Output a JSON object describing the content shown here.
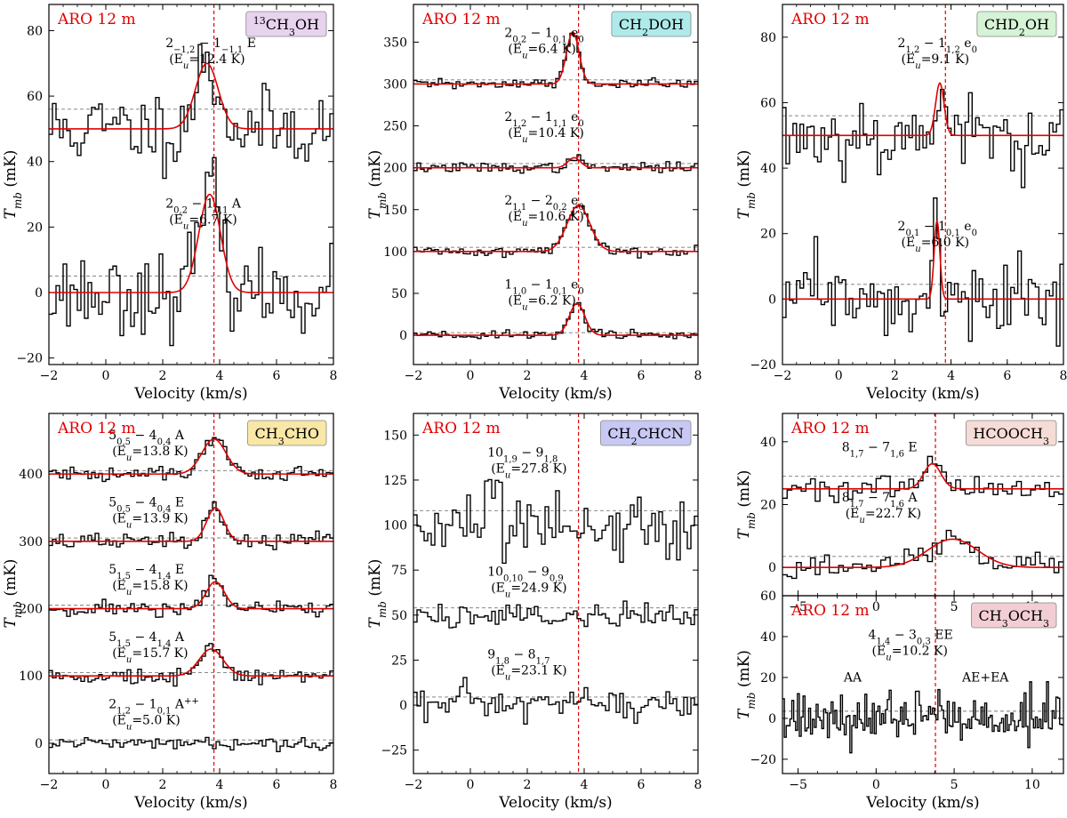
{
  "chart_data": [
    {
      "type": "line",
      "id": "p13ch3oh",
      "telescope": "ARO 12 m",
      "molecule": "<tspan baseline-shift=\"super\" font-size=\"11\">13</tspan>CH<tspan baseline-shift=\"sub\" font-size=\"11\">3</tspan>OH",
      "molecule_color": "#e8d3ee",
      "xlabel": "Velocity (km/s)",
      "ylabel": "T<tspan baseline-shift=\"sub\" font-size=\"12\">mb</tspan> (mK)",
      "xlim": [
        -2,
        8
      ],
      "ylim": [
        -22,
        88
      ],
      "xticks": [
        -2,
        0,
        2,
        4,
        6,
        8
      ],
      "yticks": [
        -20,
        0,
        20,
        40,
        60,
        80
      ],
      "vlsr": 3.8,
      "series": [
        {
          "name": "2-1,2 - 1-1,1 E",
          "label": "2<tspan baseline-shift=\"sub\" font-size=\"10\">−1,2</tspan> − 1<tspan baseline-shift=\"sub\" font-size=\"10\">−1,1</tspan> E",
          "eu": "(E<tspan baseline-shift=\"sub\" font-size=\"10\" font-style=\"italic\">u</tspan>=12.4 K)",
          "offset": 50,
          "rms_level": 56,
          "amp": 20,
          "center": 3.55,
          "width": 0.4,
          "noise": 6,
          "seed": 11,
          "label_v": 2.1,
          "label_y": 75
        },
        {
          "name": "20,2 - 10,1 A",
          "label": "2<tspan baseline-shift=\"sub\" font-size=\"10\">0,2</tspan> − 1<tspan baseline-shift=\"sub\" font-size=\"10\">0,1</tspan> A",
          "eu": "(E<tspan baseline-shift=\"sub\" font-size=\"10\" font-style=\"italic\">u</tspan>=6.7 K)",
          "offset": 0,
          "rms_level": 5,
          "amp": 30,
          "center": 3.65,
          "width": 0.38,
          "noise": 6,
          "seed": 23,
          "label_v": 2.1,
          "label_y": 26
        }
      ]
    },
    {
      "type": "line",
      "id": "pch2doh",
      "telescope": "ARO 12 m",
      "molecule": "CH<tspan baseline-shift=\"sub\" font-size=\"11\">2</tspan>DOH",
      "molecule_color": "#aeeaea",
      "xlabel": "Velocity (km/s)",
      "ylabel": "T<tspan baseline-shift=\"sub\" font-size=\"12\">mb</tspan> (mK)",
      "xlim": [
        -2,
        8
      ],
      "ylim": [
        -35,
        395
      ],
      "xticks": [
        -2,
        0,
        2,
        4,
        6,
        8
      ],
      "yticks": [
        0,
        50,
        100,
        150,
        200,
        250,
        300,
        350
      ],
      "vlsr": 3.8,
      "series": [
        {
          "name": "20,2 - 10,1 e0",
          "label": "2<tspan baseline-shift=\"sub\" font-size=\"10\">0,2</tspan> − 1<tspan baseline-shift=\"sub\" font-size=\"10\">0,1</tspan> e<tspan baseline-shift=\"sub\" font-size=\"10\">0</tspan>",
          "eu": "(E<tspan baseline-shift=\"sub\" font-size=\"10\" font-style=\"italic\">u</tspan>=6.4 K)",
          "offset": 300,
          "rms_level": 305,
          "amp": 62,
          "center": 3.6,
          "width": 0.22,
          "noise": 3,
          "seed": 31,
          "label_v": 1.2,
          "label_y": 356
        },
        {
          "name": "21,2 - 11,1 e0",
          "label": "2<tspan baseline-shift=\"sub\" font-size=\"10\">1,2</tspan> − 1<tspan baseline-shift=\"sub\" font-size=\"10\">1,1</tspan> e<tspan baseline-shift=\"sub\" font-size=\"10\">0</tspan>",
          "eu": "(E<tspan baseline-shift=\"sub\" font-size=\"10\" font-style=\"italic\">u</tspan>=10.4 K)",
          "offset": 200,
          "rms_level": 205,
          "amp": 12,
          "center": 3.65,
          "width": 0.22,
          "noise": 3,
          "seed": 37,
          "label_v": 1.2,
          "label_y": 256
        },
        {
          "name": "21,1 - 20,2 e0",
          "label": "2<tspan baseline-shift=\"sub\" font-size=\"10\">1,1</tspan> − 2<tspan baseline-shift=\"sub\" font-size=\"10\">0,2</tspan> e<tspan baseline-shift=\"sub\" font-size=\"10\">0</tspan>",
          "eu": "(E<tspan baseline-shift=\"sub\" font-size=\"10\" font-style=\"italic\">u</tspan>=10.6 K)",
          "offset": 100,
          "rms_level": 105,
          "amp": 55,
          "center": 3.8,
          "width": 0.4,
          "noise": 3,
          "seed": 41,
          "label_v": 1.2,
          "label_y": 156
        },
        {
          "name": "11,0 - 10,1 e0",
          "label": "1<tspan baseline-shift=\"sub\" font-size=\"10\">1,0</tspan> − 1<tspan baseline-shift=\"sub\" font-size=\"10\">0,1</tspan> e<tspan baseline-shift=\"sub\" font-size=\"10\">0</tspan>",
          "eu": "(E<tspan baseline-shift=\"sub\" font-size=\"10\" font-style=\"italic\">u</tspan>=6.2 K)",
          "offset": 0,
          "rms_level": 3,
          "amp": 38,
          "center": 3.75,
          "width": 0.27,
          "noise": 3,
          "seed": 43,
          "label_v": 1.2,
          "label_y": 56
        }
      ]
    },
    {
      "type": "line",
      "id": "pchd2oh",
      "telescope": "ARO 12 m",
      "molecule": "CHD<tspan baseline-shift=\"sub\" font-size=\"11\">2</tspan>OH",
      "molecule_color": "#d5f3d5",
      "xlabel": "Velocity (km/s)",
      "ylabel": "T<tspan baseline-shift=\"sub\" font-size=\"12\">mb</tspan> (mK)",
      "xlim": [
        -2,
        8
      ],
      "ylim": [
        -20,
        90
      ],
      "xticks": [
        -2,
        0,
        2,
        4,
        6,
        8
      ],
      "yticks": [
        -20,
        0,
        20,
        40,
        60,
        80
      ],
      "vlsr": 3.8,
      "series": [
        {
          "name": "21,2 - 11,2 e0",
          "label": "2<tspan baseline-shift=\"sub\" font-size=\"10\">1,2</tspan> − 1<tspan baseline-shift=\"sub\" font-size=\"10\">1,2</tspan> e<tspan baseline-shift=\"sub\" font-size=\"10\">0</tspan>",
          "eu": "(E<tspan baseline-shift=\"sub\" font-size=\"10\" font-style=\"italic\">u</tspan>=9.1 K)",
          "offset": 50,
          "rms_level": 56,
          "amp": 16,
          "center": 3.6,
          "width": 0.15,
          "noise": 6,
          "seed": 53,
          "label_v": 2.1,
          "label_y": 77
        },
        {
          "name": "20,1 - 10,1 e0",
          "label": "2<tspan baseline-shift=\"sub\" font-size=\"10\">0,1</tspan> − 1<tspan baseline-shift=\"sub\" font-size=\"10\">0,1</tspan> e<tspan baseline-shift=\"sub\" font-size=\"10\">0</tspan>",
          "eu": "(E<tspan baseline-shift=\"sub\" font-size=\"10\" font-style=\"italic\">u</tspan>=6.0 K)",
          "offset": 0,
          "rms_level": 4.5,
          "amp": 24,
          "center": 3.5,
          "width": 0.1,
          "noise": 5,
          "seed": 59,
          "label_v": 2.1,
          "label_y": 21
        }
      ]
    },
    {
      "type": "line",
      "id": "pch3cho",
      "telescope": "ARO 12 m",
      "molecule": "CH<tspan baseline-shift=\"sub\" font-size=\"11\">3</tspan>CHO",
      "molecule_color": "#f8e7a6",
      "xlabel": "Velocity (km/s)",
      "ylabel": "T<tspan baseline-shift=\"sub\" font-size=\"12\">mb</tspan> (mK)",
      "xlim": [
        -2,
        8
      ],
      "ylim": [
        -45,
        490
      ],
      "xticks": [
        -2,
        0,
        2,
        4,
        6,
        8
      ],
      "yticks": [
        0,
        100,
        200,
        300,
        400
      ],
      "vlsr": 3.8,
      "series": [
        {
          "name": "50,5 - 40,4 A",
          "label": "5<tspan baseline-shift=\"sub\" font-size=\"10\">0,5</tspan> − 4<tspan baseline-shift=\"sub\" font-size=\"10\">0,4</tspan> A",
          "eu": "(E<tspan baseline-shift=\"sub\" font-size=\"10\" font-style=\"italic\">u</tspan>=13.8 K)",
          "offset": 400,
          "rms_level": 405,
          "amp": 52,
          "center": 3.8,
          "width": 0.42,
          "noise": 6,
          "seed": 61,
          "label_v": 0.1,
          "label_y": 452
        },
        {
          "name": "50,5 - 40,4 E",
          "label": "5<tspan baseline-shift=\"sub\" font-size=\"10\">0,5</tspan> − 4<tspan baseline-shift=\"sub\" font-size=\"10\">0,4</tspan> E",
          "eu": "(E<tspan baseline-shift=\"sub\" font-size=\"10\" font-style=\"italic\">u</tspan>=13.9 K)",
          "offset": 300,
          "rms_level": 305,
          "amp": 50,
          "center": 3.85,
          "width": 0.3,
          "noise": 6,
          "seed": 67,
          "label_v": 0.1,
          "label_y": 352
        },
        {
          "name": "51,5 - 41,4 E",
          "label": "5<tspan baseline-shift=\"sub\" font-size=\"10\">1,5</tspan> − 4<tspan baseline-shift=\"sub\" font-size=\"10\">1,4</tspan> E",
          "eu": "(E<tspan baseline-shift=\"sub\" font-size=\"10\" font-style=\"italic\">u</tspan>=15.8 K)",
          "offset": 200,
          "rms_level": 205,
          "amp": 40,
          "center": 3.85,
          "width": 0.32,
          "noise": 6,
          "seed": 71,
          "label_v": 0.1,
          "label_y": 252
        },
        {
          "name": "51,5 - 41,4 A",
          "label": "5<tspan baseline-shift=\"sub\" font-size=\"10\">1,5</tspan> − 4<tspan baseline-shift=\"sub\" font-size=\"10\">1,4</tspan> A",
          "eu": "(E<tspan baseline-shift=\"sub\" font-size=\"10\" font-style=\"italic\">u</tspan>=15.7 K)",
          "offset": 100,
          "rms_level": 105,
          "amp": 40,
          "center": 3.7,
          "width": 0.42,
          "noise": 6,
          "seed": 73,
          "label_v": 0.1,
          "label_y": 152
        },
        {
          "name": "21,2 - 10,1 A++",
          "label": "2<tspan baseline-shift=\"sub\" font-size=\"10\">1,2</tspan> − 1<tspan baseline-shift=\"sub\" font-size=\"10\">0,1</tspan> A<tspan baseline-shift=\"super\" font-size=\"10\">++</tspan>",
          "eu": "(E<tspan baseline-shift=\"sub\" font-size=\"10\" font-style=\"italic\">u</tspan>=5.0 K)",
          "offset": 0,
          "rms_level": 5,
          "amp": 0,
          "center": 3.8,
          "width": 0.3,
          "noise": 4,
          "seed": 79,
          "label_v": 0.1,
          "label_y": 52
        }
      ]
    },
    {
      "type": "line",
      "id": "pch2chcn",
      "telescope": "ARO 12 m",
      "molecule": "CH<tspan baseline-shift=\"sub\" font-size=\"11\">2</tspan>CHCN",
      "molecule_color": "#c8c8f4",
      "xlabel": "Velocity (km/s)",
      "ylabel": "T<tspan baseline-shift=\"sub\" font-size=\"12\">mb</tspan> (mK)",
      "xlim": [
        -2,
        8
      ],
      "ylim": [
        -38,
        162
      ],
      "xticks": [
        -2,
        0,
        2,
        4,
        6,
        8
      ],
      "yticks": [
        -25,
        0,
        25,
        50,
        75,
        100,
        125,
        150
      ],
      "vlsr": 3.8,
      "series": [
        {
          "name": "101,9 - 91,8",
          "label": "10<tspan baseline-shift=\"sub\" font-size=\"10\">1,9</tspan> − 9<tspan baseline-shift=\"sub\" font-size=\"10\">1,8</tspan>",
          "eu": "(E<tspan baseline-shift=\"sub\" font-size=\"10\" font-style=\"italic\">u</tspan>=27.8 K)",
          "offset": 100,
          "rms_level": 108,
          "amp": 0,
          "center": 3.8,
          "width": 0.3,
          "noise": 10,
          "seed": 83,
          "label_v": 0.6,
          "label_y": 138
        },
        {
          "name": "100,10 - 90,9",
          "label": "10<tspan baseline-shift=\"sub\" font-size=\"10\">0,10</tspan> − 9<tspan baseline-shift=\"sub\" font-size=\"10\">0,9</tspan>",
          "eu": "(E<tspan baseline-shift=\"sub\" font-size=\"10\" font-style=\"italic\">u</tspan>=24.9 K)",
          "offset": 50,
          "rms_level": 54,
          "amp": 0,
          "center": 3.8,
          "width": 0.3,
          "noise": 4,
          "seed": 89,
          "label_v": 0.6,
          "label_y": 72
        },
        {
          "name": "91,8 - 81,7",
          "label": "9<tspan baseline-shift=\"sub\" font-size=\"10\">1,8</tspan> − 8<tspan baseline-shift=\"sub\" font-size=\"10\">1,7</tspan>",
          "eu": "(E<tspan baseline-shift=\"sub\" font-size=\"10\" font-style=\"italic\">u</tspan>=23.1 K)",
          "offset": 0,
          "rms_level": 4.5,
          "amp": 0,
          "center": 3.8,
          "width": 0.3,
          "noise": 5,
          "seed": 97,
          "label_v": 0.6,
          "label_y": 26
        }
      ]
    },
    {
      "type": "line",
      "id": "phcooch3",
      "telescope": "ARO 12 m",
      "molecule": "HCOOCH<tspan baseline-shift=\"sub\" font-size=\"11\">3</tspan>",
      "molecule_color": "#f6dcd6",
      "xlabel": "",
      "ylabel": "T<tspan baseline-shift=\"sub\" font-size=\"12\">mb</tspan> (mK)",
      "xlim": [
        -6,
        12
      ],
      "ylim": [
        -9,
        49
      ],
      "xticks": [
        -5,
        0,
        5,
        10
      ],
      "yticks": [
        0,
        20,
        40
      ],
      "vlsr": 3.8,
      "series": [
        {
          "name": "81,7 - 71,6 E",
          "label": "8<tspan baseline-shift=\"sub\" font-size=\"10\">1,7</tspan> − 7<tspan baseline-shift=\"sub\" font-size=\"10\">1,6</tspan> E",
          "eu": "",
          "offset": 25,
          "rms_level": 29,
          "amp": 8,
          "center": 3.6,
          "width": 0.55,
          "noise": 2,
          "seed": 101,
          "label_v": -2.2,
          "label_y": 37
        },
        {
          "name": "81,7 - 71,6 A",
          "label": "8<tspan baseline-shift=\"sub\" font-size=\"10\">1,7</tspan> − 7<tspan baseline-shift=\"sub\" font-size=\"10\">1,6</tspan> A",
          "eu": "(E<tspan baseline-shift=\"sub\" font-size=\"10\" font-style=\"italic\">u</tspan>=22.7 K)",
          "offset": 0,
          "rms_level": 3.5,
          "amp": 9,
          "center": 4.9,
          "width": 1.6,
          "noise": 2,
          "seed": 103,
          "label_v": -2.2,
          "label_y": 21
        }
      ]
    },
    {
      "type": "line",
      "id": "pch3och3",
      "telescope": "ARO 12 m",
      "molecule": "CH<tspan baseline-shift=\"sub\" font-size=\"11\">3</tspan>OCH<tspan baseline-shift=\"sub\" font-size=\"11\">3</tspan>",
      "molecule_color": "#f3cdd4",
      "xlabel": "Velocity (km/s)",
      "ylabel": "T<tspan baseline-shift=\"sub\" font-size=\"12\">mb</tspan> (mK)",
      "xlim": [
        -6,
        12
      ],
      "ylim": [
        -27,
        60
      ],
      "xticks": [
        -5,
        0,
        5,
        10
      ],
      "yticks": [
        -20,
        0,
        20,
        40,
        60
      ],
      "vlsr": 3.8,
      "series": [
        {
          "name": "41,4 - 30,3 EE",
          "label": "4<tspan baseline-shift=\"sub\" font-size=\"10\">1,4</tspan> − 3<tspan baseline-shift=\"sub\" font-size=\"10\">0,3</tspan> EE",
          "eu": "(E<tspan baseline-shift=\"sub\" font-size=\"10\" font-style=\"italic\">u</tspan>=10.2 K)",
          "offset": 0,
          "rms_level": 3.5,
          "amp": 0,
          "center": 3.8,
          "width": 0.3,
          "noise": 6,
          "seed": 107,
          "label_v": -0.5,
          "label_y": 39
        }
      ],
      "annotations": [
        {
          "text": "AA",
          "x": -1.5,
          "y": 18
        },
        {
          "text": "AE+EA",
          "x": 7.0,
          "y": 18
        }
      ]
    }
  ]
}
